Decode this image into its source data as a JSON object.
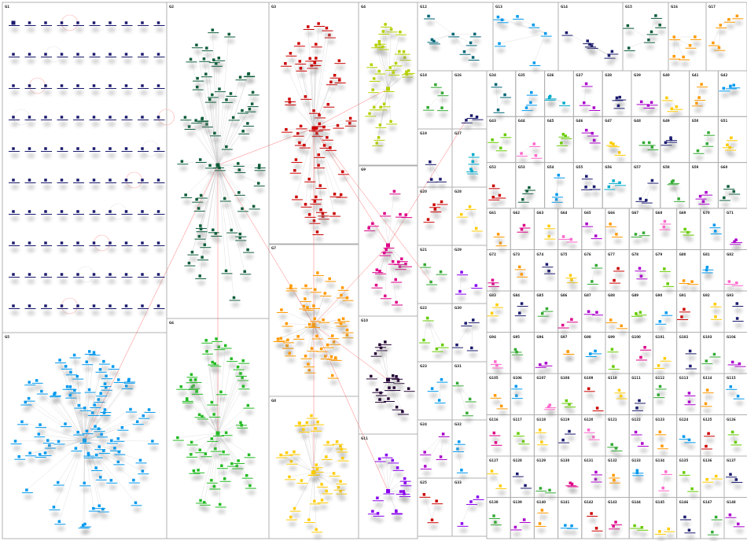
{
  "graph": {
    "edge_color": "#c8c8c8",
    "cross_edge_color": "#ff5555",
    "border_color": "#b0b0b0",
    "groups": [
      {
        "label": "G1",
        "color": "#1a1a6e",
        "nodes": 100
      },
      {
        "label": "G2",
        "color": "#0d5c3a",
        "nodes": 70
      },
      {
        "label": "G3",
        "color": "#cc0000",
        "nodes": 60
      },
      {
        "label": "G4",
        "color": "#b5d000",
        "nodes": 30
      },
      {
        "label": "G5",
        "color": "#0099ee",
        "nodes": 90
      },
      {
        "label": "G6",
        "color": "#22bb22",
        "nodes": 55
      },
      {
        "label": "G7",
        "color": "#ff9900",
        "nodes": 45
      },
      {
        "label": "G8",
        "color": "#ffcc00",
        "nodes": 35
      },
      {
        "label": "G9",
        "color": "#dd0088",
        "nodes": 20
      },
      {
        "label": "G10",
        "color": "#220033",
        "nodes": 18
      },
      {
        "label": "G11",
        "color": "#8800ee",
        "nodes": 15
      },
      {
        "label": "G12",
        "color": "#006677",
        "nodes": 8
      },
      {
        "label": "G13",
        "color": "#0099ee",
        "nodes": 7
      },
      {
        "label": "G14",
        "color": "#1a1a6e",
        "nodes": 6
      },
      {
        "label": "G15",
        "color": "#0d5c3a",
        "nodes": 6
      },
      {
        "label": "G16",
        "color": "#ff9900",
        "nodes": 5
      },
      {
        "label": "G17",
        "color": "#ff9900",
        "nodes": 5
      },
      {
        "label": "G18",
        "color": "#33aa33",
        "nodes": 4
      },
      {
        "label": "G19",
        "color": "#1a1a6e",
        "nodes": 3
      },
      {
        "label": "G20",
        "color": "#cc0000",
        "nodes": 4
      },
      {
        "label": "G21",
        "color": "#33aa33",
        "nodes": 3
      },
      {
        "label": "G22",
        "color": "#66cc00",
        "nodes": 4
      },
      {
        "label": "G23",
        "color": "#0099ee",
        "nodes": 3
      },
      {
        "label": "G24",
        "color": "#aa00cc",
        "nodes": 4
      },
      {
        "label": "G25",
        "color": "#cc0000",
        "nodes": 3
      },
      {
        "label": "G26",
        "color": "#1a1a6e",
        "nodes": 3
      },
      {
        "label": "G27",
        "color": "#00aacc",
        "nodes": 4
      },
      {
        "label": "G28",
        "color": "#ffcc00",
        "nodes": 3
      },
      {
        "label": "G29",
        "color": "#8800ee",
        "nodes": 3
      },
      {
        "label": "G30",
        "color": "#1a1a6e",
        "nodes": 4
      },
      {
        "label": "G31",
        "color": "#33aa33",
        "nodes": 3
      },
      {
        "label": "G32",
        "color": "#0099ee",
        "nodes": 3
      },
      {
        "label": "G33",
        "color": "#8800ee",
        "nodes": 3
      },
      {
        "label": "G34",
        "color": "#006677",
        "nodes": 3
      },
      {
        "label": "G35",
        "color": "#0099ee",
        "nodes": 3
      },
      {
        "label": "G36",
        "color": "#00aacc",
        "nodes": 3
      },
      {
        "label": "G37",
        "color": "#aa00cc",
        "nodes": 3
      },
      {
        "label": "G38",
        "color": "#1a1a6e",
        "nodes": 3
      },
      {
        "label": "G39",
        "color": "#aa00cc",
        "nodes": 3
      },
      {
        "label": "G40",
        "color": "#ffcc00",
        "nodes": 3
      },
      {
        "label": "G41",
        "color": "#ff9900",
        "nodes": 3
      },
      {
        "label": "G42",
        "color": "#0099ee",
        "nodes": 3
      },
      {
        "label": "G43",
        "color": "#66cc00",
        "nodes": 3
      },
      {
        "label": "G44",
        "color": "#ff66cc",
        "nodes": 3
      },
      {
        "label": "G45",
        "color": "#66cc00",
        "nodes": 3
      },
      {
        "label": "G46",
        "color": "#aa00cc",
        "nodes": 3
      },
      {
        "label": "G47",
        "color": "#ffcc00",
        "nodes": 3
      },
      {
        "label": "G48",
        "color": "#33aa33",
        "nodes": 3
      },
      {
        "label": "G49",
        "color": "#1a1a6e",
        "nodes": 3
      },
      {
        "label": "G50",
        "color": "#33aa33",
        "nodes": 3
      },
      {
        "label": "G51",
        "color": "#ffcc00",
        "nodes": 3
      },
      {
        "label": "G52",
        "color": "#cc0000",
        "nodes": 3
      },
      {
        "label": "G53",
        "color": "#0d5c3a",
        "nodes": 3
      },
      {
        "label": "G54",
        "color": "#0099ee",
        "nodes": 3
      },
      {
        "label": "G55",
        "color": "#1a1a6e",
        "nodes": 3
      },
      {
        "label": "G56",
        "color": "#00aacc",
        "nodes": 3
      },
      {
        "label": "G57",
        "color": "#1a1a6e",
        "nodes": 3
      },
      {
        "label": "G58",
        "color": "#33aa33",
        "nodes": 3
      },
      {
        "label": "G59",
        "color": "#aa00cc",
        "nodes": 3
      },
      {
        "label": "G60",
        "color": "#0d5c3a",
        "nodes": 3
      },
      {
        "label": "G61",
        "color": "#ff9900",
        "nodes": 2
      },
      {
        "label": "G62",
        "color": "#dd0088",
        "nodes": 2
      },
      {
        "label": "G63",
        "color": "#ffcc00",
        "nodes": 2
      },
      {
        "label": "G64",
        "color": "#ff66cc",
        "nodes": 2
      },
      {
        "label": "G65",
        "color": "#aa00cc",
        "nodes": 2
      },
      {
        "label": "G66",
        "color": "#ff9900",
        "nodes": 2
      },
      {
        "label": "G67",
        "color": "#33aa33",
        "nodes": 2
      },
      {
        "label": "G68",
        "color": "#ff66cc",
        "nodes": 2
      },
      {
        "label": "G69",
        "color": "#66cc00",
        "nodes": 2
      },
      {
        "label": "G70",
        "color": "#0099ee",
        "nodes": 2
      },
      {
        "label": "G71",
        "color": "#aa00cc",
        "nodes": 2
      },
      {
        "label": "G72",
        "color": "#dd0088",
        "nodes": 2
      },
      {
        "label": "G73",
        "color": "#ff9900",
        "nodes": 2
      },
      {
        "label": "G74",
        "color": "#1a1a6e",
        "nodes": 2
      },
      {
        "label": "G75",
        "color": "#ffcc00",
        "nodes": 2
      },
      {
        "label": "G76",
        "color": "#33aa33",
        "nodes": 2
      },
      {
        "label": "G77",
        "color": "#cc0000",
        "nodes": 2
      },
      {
        "label": "G78",
        "color": "#aa00cc",
        "nodes": 2
      },
      {
        "label": "G79",
        "color": "#66cc00",
        "nodes": 2
      },
      {
        "label": "G80",
        "color": "#ff9900",
        "nodes": 2
      },
      {
        "label": "G81",
        "color": "#0099ee",
        "nodes": 2
      },
      {
        "label": "G82",
        "color": "#ff66cc",
        "nodes": 2
      },
      {
        "label": "G83",
        "color": "#ffcc00",
        "nodes": 2
      },
      {
        "label": "G84",
        "color": "#1a1a6e",
        "nodes": 2
      },
      {
        "label": "G85",
        "color": "#33aa33",
        "nodes": 2
      },
      {
        "label": "G86",
        "color": "#dd0088",
        "nodes": 2
      },
      {
        "label": "G87",
        "color": "#aa00cc",
        "nodes": 2
      },
      {
        "label": "G88",
        "color": "#ff9900",
        "nodes": 2
      },
      {
        "label": "G89",
        "color": "#66cc00",
        "nodes": 2
      },
      {
        "label": "G90",
        "color": "#0099ee",
        "nodes": 2
      },
      {
        "label": "G91",
        "color": "#cc0000",
        "nodes": 2
      },
      {
        "label": "G92",
        "color": "#ffcc00",
        "nodes": 2
      },
      {
        "label": "G93",
        "color": "#1a1a6e",
        "nodes": 2
      },
      {
        "label": "G94",
        "color": "#ff66cc",
        "nodes": 2
      },
      {
        "label": "G95",
        "color": "#33aa33",
        "nodes": 2
      },
      {
        "label": "G96",
        "color": "#aa00cc",
        "nodes": 2
      },
      {
        "label": "G97",
        "color": "#ff9900",
        "nodes": 2
      },
      {
        "label": "G98",
        "color": "#0099ee",
        "nodes": 2
      },
      {
        "label": "G99",
        "color": "#66cc00",
        "nodes": 2
      },
      {
        "label": "G100",
        "color": "#dd0088",
        "nodes": 2
      },
      {
        "label": "G101",
        "color": "#ffcc00",
        "nodes": 2
      },
      {
        "label": "G102",
        "color": "#1a1a6e",
        "nodes": 2
      },
      {
        "label": "G103",
        "color": "#33aa33",
        "nodes": 2
      },
      {
        "label": "G104",
        "color": "#aa00cc",
        "nodes": 2
      },
      {
        "label": "G105",
        "color": "#ff9900",
        "nodes": 2
      },
      {
        "label": "G106",
        "color": "#0099ee",
        "nodes": 2
      },
      {
        "label": "G107",
        "color": "#ff66cc",
        "nodes": 2
      },
      {
        "label": "G108",
        "color": "#66cc00",
        "nodes": 2
      },
      {
        "label": "G109",
        "color": "#cc0000",
        "nodes": 2
      },
      {
        "label": "G110",
        "color": "#ffcc00",
        "nodes": 2
      },
      {
        "label": "G111",
        "color": "#1a1a6e",
        "nodes": 2
      },
      {
        "label": "G112",
        "color": "#33aa33",
        "nodes": 2
      },
      {
        "label": "G113",
        "color": "#aa00cc",
        "nodes": 2
      },
      {
        "label": "G114",
        "color": "#ff9900",
        "nodes": 2
      },
      {
        "label": "G115",
        "color": "#0099ee",
        "nodes": 2
      },
      {
        "label": "G116",
        "color": "#dd0088",
        "nodes": 2
      },
      {
        "label": "G117",
        "color": "#66cc00",
        "nodes": 2
      },
      {
        "label": "G118",
        "color": "#ffcc00",
        "nodes": 2
      },
      {
        "label": "G119",
        "color": "#1a1a6e",
        "nodes": 2
      },
      {
        "label": "G120",
        "color": "#ff66cc",
        "nodes": 2
      },
      {
        "label": "G121",
        "color": "#33aa33",
        "nodes": 2
      },
      {
        "label": "G122",
        "color": "#aa00cc",
        "nodes": 2
      },
      {
        "label": "G123",
        "color": "#ff9900",
        "nodes": 2
      },
      {
        "label": "G124",
        "color": "#0099ee",
        "nodes": 2
      },
      {
        "label": "G125",
        "color": "#cc0000",
        "nodes": 2
      },
      {
        "label": "G126",
        "color": "#66cc00",
        "nodes": 2
      },
      {
        "label": "G127",
        "color": "#ffcc00",
        "nodes": 2
      },
      {
        "label": "G128",
        "color": "#1a1a6e",
        "nodes": 2
      },
      {
        "label": "G129",
        "color": "#33aa33",
        "nodes": 2
      },
      {
        "label": "G130",
        "color": "#dd0088",
        "nodes": 2
      },
      {
        "label": "G131",
        "color": "#aa00cc",
        "nodes": 2
      },
      {
        "label": "G132",
        "color": "#ff9900",
        "nodes": 2
      },
      {
        "label": "G133",
        "color": "#0099ee",
        "nodes": 2
      },
      {
        "label": "G134",
        "color": "#ff66cc",
        "nodes": 2
      },
      {
        "label": "G135",
        "color": "#66cc00",
        "nodes": 2
      },
      {
        "label": "G136",
        "color": "#ffcc00",
        "nodes": 2
      },
      {
        "label": "G137",
        "color": "#1a1a6e",
        "nodes": 2
      },
      {
        "label": "G138",
        "color": "#33aa33",
        "nodes": 2
      },
      {
        "label": "G139",
        "color": "#aa00cc",
        "nodes": 2
      },
      {
        "label": "G140",
        "color": "#ff9900",
        "nodes": 2
      },
      {
        "label": "G141",
        "color": "#0099ee",
        "nodes": 2
      },
      {
        "label": "G142",
        "color": "#cc0000",
        "nodes": 2
      },
      {
        "label": "G143",
        "color": "#dd0088",
        "nodes": 2
      },
      {
        "label": "G144",
        "color": "#66cc00",
        "nodes": 2
      },
      {
        "label": "G145",
        "color": "#ffcc00",
        "nodes": 2
      },
      {
        "label": "G146",
        "color": "#1a1a6e",
        "nodes": 2
      },
      {
        "label": "G147",
        "color": "#33aa33",
        "nodes": 2
      },
      {
        "label": "G148",
        "color": "#aa00cc",
        "nodes": 2
      }
    ]
  }
}
